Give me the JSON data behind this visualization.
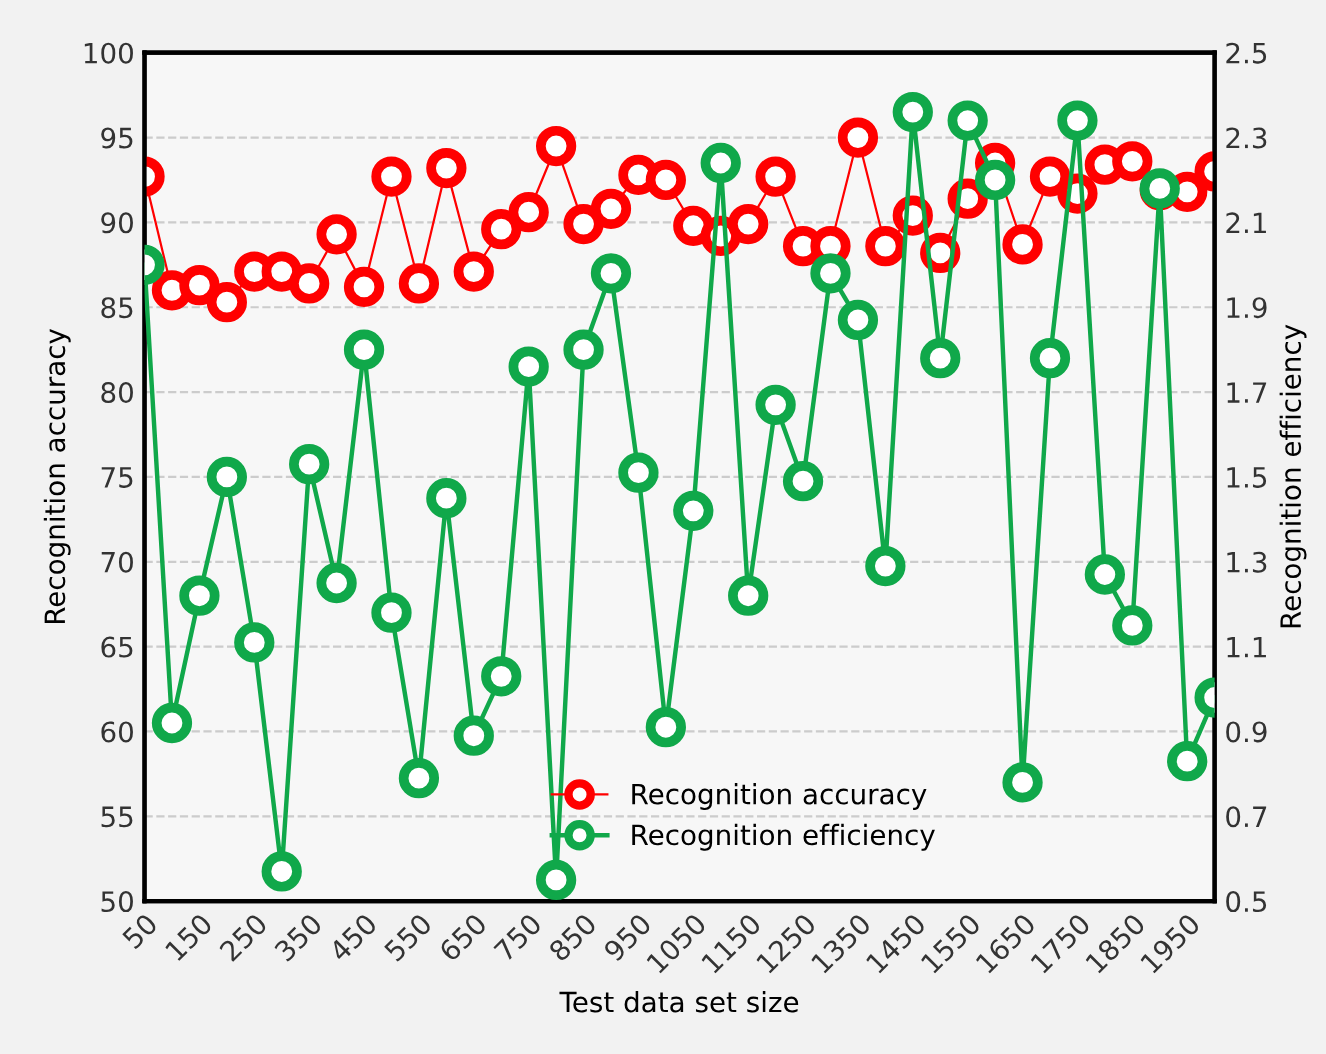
{
  "chart_data": {
    "type": "line",
    "xlabel": "Test data set size",
    "ylabel": "Recognition accuracy",
    "y2label": "Recognition efficiency",
    "x": [
      50,
      100,
      150,
      200,
      250,
      300,
      350,
      400,
      450,
      500,
      550,
      600,
      650,
      700,
      750,
      800,
      850,
      900,
      950,
      1000,
      1050,
      1100,
      1150,
      1200,
      1250,
      1300,
      1350,
      1400,
      1450,
      1500,
      1550,
      1600,
      1650,
      1700,
      1750,
      1800,
      1850,
      1900,
      1950,
      2000
    ],
    "series": [
      {
        "name": "Recognition accuracy",
        "color": "#ff0000",
        "values": [
          92.7,
          86.0,
          86.3,
          85.3,
          87.1,
          87.1,
          86.4,
          89.3,
          86.2,
          92.7,
          86.4,
          93.2,
          87.1,
          89.6,
          90.6,
          94.5,
          89.9,
          90.8,
          92.8,
          92.5,
          89.8,
          89.2,
          89.9,
          92.7,
          88.6,
          88.6,
          95.0,
          88.6,
          90.4,
          88.2,
          91.4,
          93.5,
          88.7,
          92.7,
          91.7,
          93.4,
          93.6,
          91.9,
          91.8,
          93.0
        ]
      },
      {
        "name": "Recognition efficiency",
        "color": "#10a84a",
        "axis": "y2",
        "values": [
          2.0,
          0.92,
          1.22,
          1.5,
          1.11,
          0.57,
          1.53,
          1.25,
          1.8,
          1.18,
          0.79,
          1.45,
          0.89,
          1.03,
          1.76,
          0.55,
          1.8,
          1.98,
          1.51,
          0.91,
          1.42,
          2.24,
          1.22,
          1.67,
          1.49,
          1.98,
          1.87,
          1.29,
          2.36,
          1.78,
          2.34,
          2.2,
          0.78,
          1.78,
          2.34,
          1.27,
          1.15,
          2.18,
          0.83,
          0.98
        ]
      }
    ],
    "xlim": [
      50,
      2000
    ],
    "xticks": [
      50,
      150,
      250,
      350,
      450,
      550,
      650,
      750,
      850,
      950,
      1050,
      1150,
      1250,
      1350,
      1450,
      1550,
      1650,
      1750,
      1850,
      1950
    ],
    "ylim": [
      50,
      100
    ],
    "yticks": [
      50,
      55,
      60,
      65,
      70,
      75,
      80,
      85,
      90,
      95,
      100
    ],
    "y2lim": [
      0.5,
      2.5
    ],
    "y2ticks": [
      0.5,
      0.7,
      0.9,
      1.1,
      1.3,
      1.5,
      1.7,
      1.9,
      2.1,
      2.3,
      2.5
    ],
    "grid": "y",
    "legend": "bottom",
    "marker": "circle",
    "line_style": "solid"
  }
}
